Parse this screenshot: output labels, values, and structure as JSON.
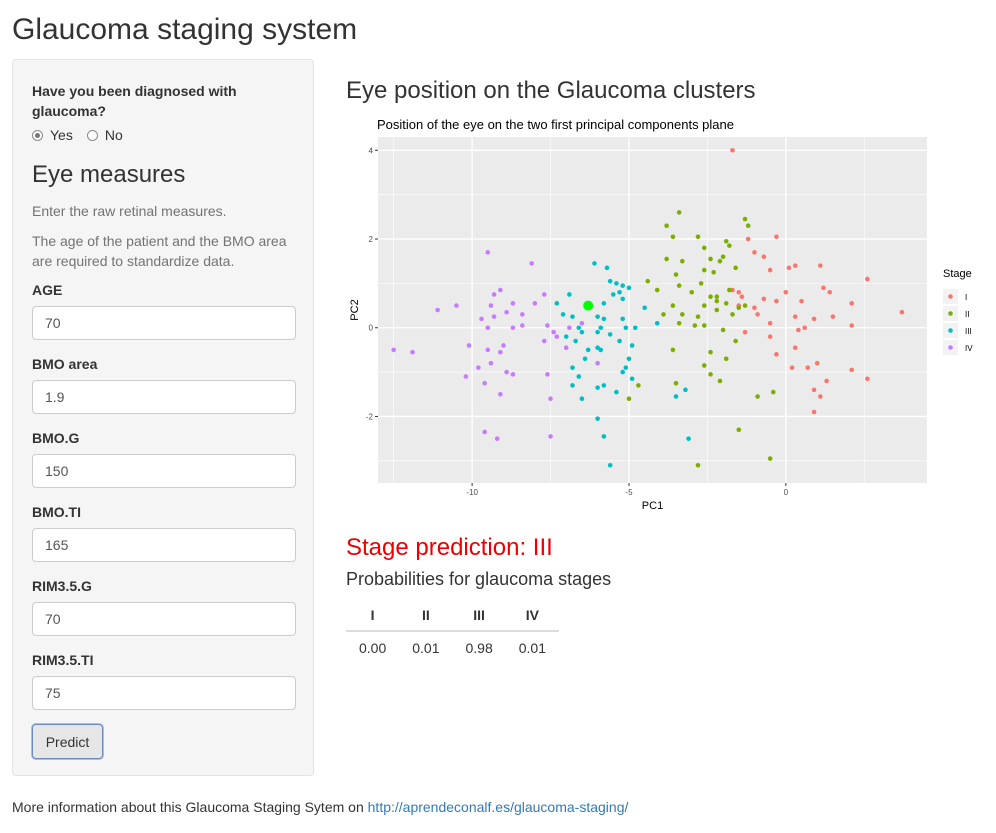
{
  "page": {
    "title": "Glaucoma staging system"
  },
  "sidebar": {
    "question": "Have you been diagnosed with glaucoma?",
    "radio_yes": "Yes",
    "radio_no": "No",
    "selected": "Yes",
    "section_title": "Eye measures",
    "help_1": "Enter the raw retinal measures.",
    "help_2": "The age of the patient and the BMO area are required to standardize data.",
    "fields": [
      {
        "label": "AGE",
        "value": "70"
      },
      {
        "label": "BMO area",
        "value": "1.9"
      },
      {
        "label": "BMO.G",
        "value": "150"
      },
      {
        "label": "BMO.TI",
        "value": "165"
      },
      {
        "label": "RIM3.5.G",
        "value": "70"
      },
      {
        "label": "RIM3.5.TI",
        "value": "75"
      }
    ],
    "predict_label": "Predict"
  },
  "main": {
    "title": "Eye position on the Glaucoma clusters",
    "stage_prediction": "Stage prediction: III",
    "prob_title": "Probabilities for glaucoma stages",
    "prob_table": {
      "headers": [
        "I",
        "II",
        "III",
        "IV"
      ],
      "values": [
        "0.00",
        "0.01",
        "0.98",
        "0.01"
      ]
    }
  },
  "footer": {
    "text": "More information about this Glaucoma Staging Sytem on ",
    "link": "http://aprendeconalf.es/glaucoma-staging/"
  },
  "chart_data": {
    "type": "scatter",
    "title": "Position of the eye on the two first principal components plane",
    "xlabel": "PC1",
    "ylabel": "PC2",
    "xlim": [
      -13,
      4.5
    ],
    "ylim": [
      -3.5,
      4.3
    ],
    "xticks": [
      -10,
      -5,
      0
    ],
    "yticks": [
      -2,
      0,
      2,
      4
    ],
    "grid": true,
    "legend_title": "Stage",
    "legend_position": "right",
    "colors": {
      "I": "#F8766D",
      "II": "#7CAE00",
      "III": "#00BFC4",
      "IV": "#C77CFF",
      "eye": "#00FF00"
    },
    "series": [
      {
        "name": "I",
        "points": [
          [
            -1.7,
            4.0
          ],
          [
            -1.2,
            2.0
          ],
          [
            -0.3,
            2.05
          ],
          [
            -1.0,
            1.7
          ],
          [
            -0.7,
            1.6
          ],
          [
            -0.5,
            1.3
          ],
          [
            0.1,
            1.35
          ],
          [
            0.3,
            1.4
          ],
          [
            1.1,
            1.4
          ],
          [
            2.6,
            1.1
          ],
          [
            -1.7,
            0.85
          ],
          [
            -1.4,
            0.7
          ],
          [
            -1.5,
            0.8
          ],
          [
            -1.0,
            0.45
          ],
          [
            -0.7,
            0.65
          ],
          [
            -0.3,
            0.6
          ],
          [
            0.0,
            0.8
          ],
          [
            0.5,
            0.6
          ],
          [
            1.2,
            0.9
          ],
          [
            1.4,
            0.8
          ],
          [
            2.1,
            0.55
          ],
          [
            3.7,
            0.35
          ],
          [
            -1.5,
            0.5
          ],
          [
            -0.9,
            0.3
          ],
          [
            -0.5,
            0.1
          ],
          [
            0.3,
            0.25
          ],
          [
            0.6,
            0.0
          ],
          [
            0.9,
            0.2
          ],
          [
            1.5,
            0.25
          ],
          [
            2.1,
            0.05
          ],
          [
            -1.3,
            -0.1
          ],
          [
            -0.5,
            -0.2
          ],
          [
            0.3,
            -0.45
          ],
          [
            0.7,
            -0.9
          ],
          [
            1.0,
            -0.8
          ],
          [
            1.3,
            -1.2
          ],
          [
            2.1,
            -0.95
          ],
          [
            2.6,
            -1.15
          ],
          [
            -0.3,
            -0.6
          ],
          [
            0.2,
            -0.9
          ],
          [
            0.9,
            -1.4
          ],
          [
            1.1,
            -1.55
          ],
          [
            0.9,
            -1.9
          ],
          [
            0.4,
            -0.05
          ]
        ]
      },
      {
        "name": "II",
        "points": [
          [
            -3.4,
            2.6
          ],
          [
            -3.8,
            2.3
          ],
          [
            -1.3,
            2.45
          ],
          [
            -1.2,
            2.3
          ],
          [
            -3.6,
            2.05
          ],
          [
            -2.8,
            2.05
          ],
          [
            -1.9,
            1.95
          ],
          [
            -3.8,
            1.55
          ],
          [
            -2.6,
            1.8
          ],
          [
            -1.8,
            1.85
          ],
          [
            -3.3,
            1.5
          ],
          [
            -2.1,
            1.5
          ],
          [
            -2.4,
            1.55
          ],
          [
            -2.0,
            1.6
          ],
          [
            -1.6,
            1.35
          ],
          [
            -4.4,
            1.05
          ],
          [
            -3.4,
            0.95
          ],
          [
            -2.6,
            1.3
          ],
          [
            -2.3,
            1.25
          ],
          [
            -1.8,
            0.85
          ],
          [
            -4.1,
            0.85
          ],
          [
            -3.0,
            0.8
          ],
          [
            -2.4,
            0.7
          ],
          [
            -2.2,
            0.7
          ],
          [
            -1.9,
            0.55
          ],
          [
            -3.6,
            0.5
          ],
          [
            -2.6,
            0.5
          ],
          [
            -1.3,
            0.5
          ],
          [
            -3.9,
            0.3
          ],
          [
            -3.3,
            0.3
          ],
          [
            -2.8,
            0.25
          ],
          [
            -2.2,
            0.4
          ],
          [
            -1.7,
            0.3
          ],
          [
            -3.4,
            0.1
          ],
          [
            -2.9,
            0.05
          ],
          [
            -2.6,
            0.05
          ],
          [
            -2.0,
            -0.05
          ],
          [
            -1.6,
            -0.3
          ],
          [
            -3.6,
            -0.5
          ],
          [
            -2.4,
            -0.55
          ],
          [
            -1.9,
            -0.7
          ],
          [
            -2.6,
            -0.85
          ],
          [
            -2.4,
            -1.05
          ],
          [
            -4.7,
            -1.3
          ],
          [
            -5.0,
            -1.6
          ],
          [
            -3.5,
            -1.25
          ],
          [
            -2.1,
            -1.2
          ],
          [
            -0.9,
            -1.55
          ],
          [
            -0.4,
            -1.45
          ],
          [
            -0.5,
            -2.95
          ],
          [
            -2.8,
            -3.1
          ],
          [
            -1.5,
            -2.3
          ],
          [
            -2.2,
            0.6
          ],
          [
            -1.5,
            0.45
          ],
          [
            -3.5,
            1.2
          ],
          [
            -2.7,
            1.0
          ]
        ]
      },
      {
        "name": "III",
        "points": [
          [
            -6.1,
            1.45
          ],
          [
            -5.7,
            1.35
          ],
          [
            -5.6,
            1.05
          ],
          [
            -5.4,
            1.0
          ],
          [
            -5.2,
            0.95
          ],
          [
            -5.0,
            0.9
          ],
          [
            -5.5,
            0.75
          ],
          [
            -5.3,
            0.8
          ],
          [
            -6.9,
            0.75
          ],
          [
            -7.3,
            0.55
          ],
          [
            -7.1,
            0.3
          ],
          [
            -6.8,
            0.25
          ],
          [
            -6.3,
            0.45
          ],
          [
            -5.8,
            0.55
          ],
          [
            -5.2,
            0.65
          ],
          [
            -4.5,
            0.45
          ],
          [
            -6.0,
            0.25
          ],
          [
            -5.8,
            0.2
          ],
          [
            -4.1,
            0.1
          ],
          [
            -5.2,
            0.2
          ],
          [
            -6.6,
            0.0
          ],
          [
            -5.9,
            0.0
          ],
          [
            -5.1,
            0.0
          ],
          [
            -4.8,
            0.0
          ],
          [
            -6.5,
            -0.1
          ],
          [
            -6.0,
            -0.1
          ],
          [
            -5.6,
            -0.15
          ],
          [
            -7.0,
            -0.2
          ],
          [
            -6.7,
            -0.3
          ],
          [
            -5.3,
            -0.3
          ],
          [
            -4.9,
            -0.4
          ],
          [
            -6.3,
            -0.5
          ],
          [
            -6.0,
            -0.45
          ],
          [
            -5.9,
            -0.5
          ],
          [
            -5.0,
            -0.7
          ],
          [
            -5.1,
            -0.9
          ],
          [
            -6.4,
            -0.7
          ],
          [
            -6.8,
            -0.9
          ],
          [
            -6.6,
            -1.1
          ],
          [
            -5.8,
            -1.3
          ],
          [
            -5.2,
            -1.0
          ],
          [
            -4.9,
            -1.15
          ],
          [
            -6.0,
            -1.35
          ],
          [
            -5.4,
            -1.45
          ],
          [
            -6.8,
            -1.3
          ],
          [
            -6.5,
            -1.6
          ],
          [
            -6.0,
            -2.05
          ],
          [
            -5.8,
            -2.45
          ],
          [
            -5.6,
            -3.1
          ],
          [
            -3.2,
            -1.4
          ],
          [
            -3.5,
            -1.55
          ],
          [
            -3.1,
            -2.5
          ]
        ]
      },
      {
        "name": "IV",
        "points": [
          [
            -9.5,
            1.7
          ],
          [
            -8.1,
            1.45
          ],
          [
            -9.1,
            0.85
          ],
          [
            -9.3,
            0.75
          ],
          [
            -7.7,
            0.75
          ],
          [
            -8.7,
            0.55
          ],
          [
            -10.5,
            0.5
          ],
          [
            -11.1,
            0.4
          ],
          [
            -9.4,
            0.5
          ],
          [
            -8.0,
            0.55
          ],
          [
            -8.9,
            0.35
          ],
          [
            -9.3,
            0.25
          ],
          [
            -8.4,
            0.3
          ],
          [
            -9.7,
            0.2
          ],
          [
            -9.5,
            0.0
          ],
          [
            -8.7,
            0.0
          ],
          [
            -8.4,
            0.05
          ],
          [
            -7.6,
            0.05
          ],
          [
            -6.9,
            0.0
          ],
          [
            -7.3,
            -0.2
          ],
          [
            -7.7,
            -0.3
          ],
          [
            -7.0,
            -0.45
          ],
          [
            -9.0,
            -0.4
          ],
          [
            -9.1,
            -0.55
          ],
          [
            -9.5,
            -0.5
          ],
          [
            -10.1,
            -0.4
          ],
          [
            -11.9,
            -0.55
          ],
          [
            -12.5,
            -0.5
          ],
          [
            -9.4,
            -0.8
          ],
          [
            -9.8,
            -0.9
          ],
          [
            -10.2,
            -1.1
          ],
          [
            -8.9,
            -1.0
          ],
          [
            -8.7,
            -1.05
          ],
          [
            -7.6,
            -1.05
          ],
          [
            -9.6,
            -1.25
          ],
          [
            -9.1,
            -1.5
          ],
          [
            -7.5,
            -1.6
          ],
          [
            -9.6,
            -2.35
          ],
          [
            -9.2,
            -2.5
          ],
          [
            -7.5,
            -2.45
          ],
          [
            -6.0,
            -0.8
          ],
          [
            -7.4,
            -0.1
          ],
          [
            -6.5,
            0.1
          ]
        ]
      }
    ],
    "highlight": {
      "name": "eye",
      "x": -6.3,
      "y": 0.5
    },
    "legend_entries": [
      "I",
      "II",
      "III",
      "IV"
    ]
  }
}
